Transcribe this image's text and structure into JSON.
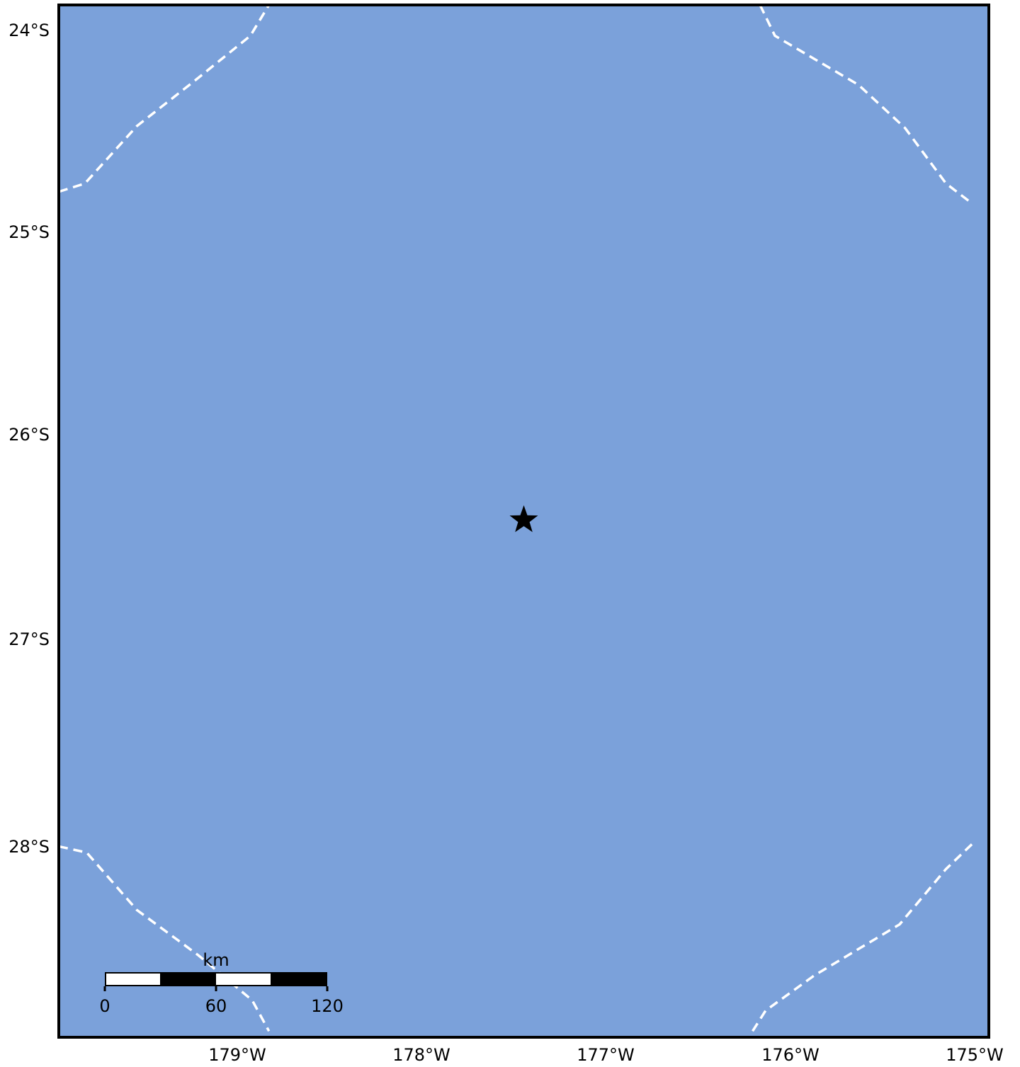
{
  "colors": {
    "ocean": "#7ba1da",
    "frame": "#000000",
    "boundary": "#ffffff",
    "marker": "#000000"
  },
  "map": {
    "lon_range": [
      -180.0,
      -175.0
    ],
    "lat_range": [
      -28.9,
      -23.87
    ],
    "lat_ticks": [
      {
        "value": -24,
        "label": "24°S"
      },
      {
        "value": -25,
        "label": "25°S"
      },
      {
        "value": -26,
        "label": "26°S"
      },
      {
        "value": -27,
        "label": "27°S"
      },
      {
        "value": -28,
        "label": "28°S"
      }
    ],
    "lon_ticks": [
      {
        "value": -179,
        "label": "179°W"
      },
      {
        "value": -178,
        "label": "178°W"
      },
      {
        "value": -177,
        "label": "177°W"
      },
      {
        "value": -176,
        "label": "176°W"
      },
      {
        "value": -175,
        "label": "175°W"
      }
    ],
    "marker": {
      "icon": "star-icon",
      "lon": -177.5,
      "lat": -26.38
    },
    "boundaries": [
      [
        [
          -180.0,
          -24.78
        ],
        [
          -179.86,
          -24.74
        ],
        [
          -179.58,
          -24.46
        ],
        [
          -179.27,
          -24.24
        ],
        [
          -178.97,
          -24.02
        ],
        [
          -178.87,
          -23.87
        ]
      ],
      [
        [
          -176.23,
          -23.87
        ],
        [
          -176.15,
          -24.02
        ],
        [
          -175.7,
          -24.26
        ],
        [
          -175.45,
          -24.47
        ],
        [
          -175.23,
          -24.74
        ],
        [
          -175.1,
          -24.83
        ]
      ],
      [
        [
          -180.0,
          -27.97
        ],
        [
          -179.85,
          -28.0
        ],
        [
          -179.58,
          -28.28
        ],
        [
          -179.25,
          -28.5
        ],
        [
          -178.96,
          -28.72
        ],
        [
          -178.87,
          -28.87
        ]
      ],
      [
        [
          -176.27,
          -28.87
        ],
        [
          -176.2,
          -28.77
        ],
        [
          -175.94,
          -28.6
        ],
        [
          -175.48,
          -28.35
        ],
        [
          -175.23,
          -28.08
        ],
        [
          -175.08,
          -27.95
        ]
      ]
    ],
    "scale_bar": {
      "unit": "km",
      "labels": [
        "0",
        "60",
        "120"
      ],
      "km_values": [
        0,
        60,
        120
      ],
      "segments": 4
    }
  }
}
